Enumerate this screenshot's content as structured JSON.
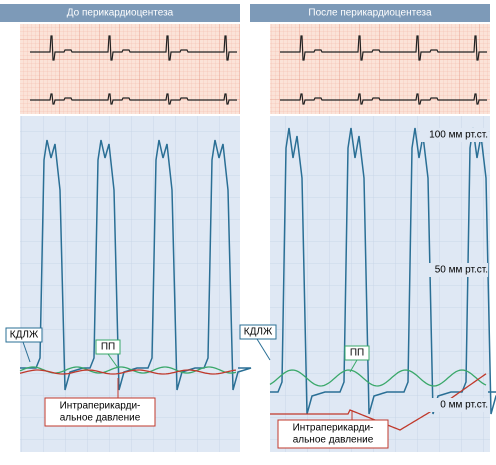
{
  "panels": [
    {
      "title": "До перикардиоцентеза",
      "labels": {
        "lv": "КДЛЖ",
        "ra": "ПП",
        "pericardial": [
          "Интраперикарди-",
          "альное давление"
        ]
      }
    },
    {
      "title": "После перикардиоцентеза",
      "labels": {
        "lv": "КДЛЖ",
        "ra": "ПП",
        "pericardial": [
          "Интраперикарди-",
          "альное давление"
        ]
      }
    }
  ],
  "scale": [
    "100 мм рт.ст.",
    "50 мм рт.ст.",
    "0 мм рт.ст."
  ]
}
